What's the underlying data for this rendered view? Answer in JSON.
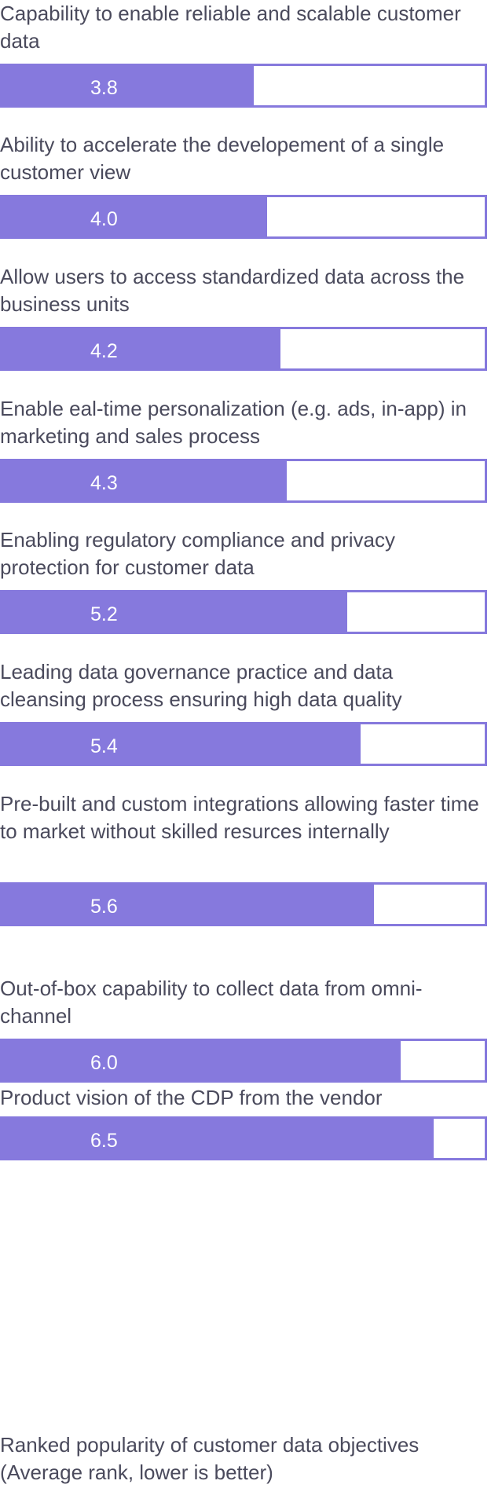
{
  "chart_data": {
    "type": "bar",
    "orientation": "horizontal",
    "categories": [
      "Capability to enable reliable and scalable customer data",
      "Ability to accelerate the developement of a single customer view",
      "Allow users to access standardized data across the business units",
      "Enable eal-time personalization (e.g. ads, in-app) in marketing and sales process",
      "Enabling regulatory compliance and privacy protection for customer data",
      "Leading data governance practice and data cleansing process ensuring high data quality",
      "Pre-built and custom integrations allowing faster time to market without skilled resurces internally",
      "Out-of-box capability to collect data from omni-channel",
      "Product vision of the CDP from the vendor"
    ],
    "values": [
      3.8,
      4.0,
      4.2,
      4.3,
      5.2,
      5.4,
      5.6,
      6.0,
      6.5
    ],
    "value_labels": [
      "3.8",
      "4.0",
      "4.2",
      "4.3",
      "5.2",
      "5.4",
      "5.6",
      "6.0",
      "6.5"
    ],
    "xlim": [
      0,
      7.3
    ],
    "title": "",
    "note": "Ranked popularity of customer data objectives (Average rank, lower is better)",
    "colors": {
      "bar": "#8679dd",
      "value_text": "#ffffff",
      "label_text": "#4a4a5c"
    }
  }
}
